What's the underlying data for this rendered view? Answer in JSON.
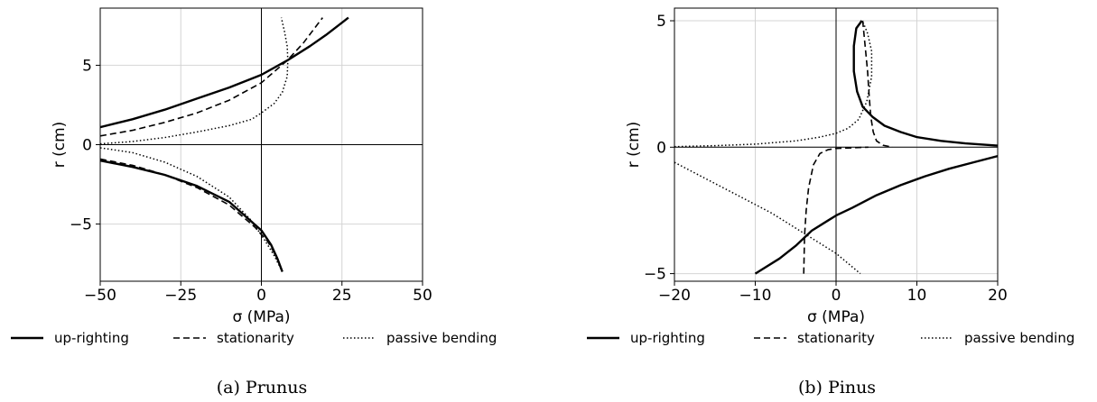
{
  "chart_data": [
    {
      "type": "line",
      "caption": "(a) Prunus",
      "xlabel": "σ (MPa)",
      "ylabel": "r (cm)",
      "xlim": [
        -50,
        50
      ],
      "ylim": [
        -8.6,
        8.6
      ],
      "xticks": [
        -50,
        -25,
        0,
        25,
        50
      ],
      "yticks": [
        -5,
        0,
        5
      ],
      "xtick_labels": [
        "−50",
        "−25",
        "0",
        "25",
        "50"
      ],
      "ytick_labels": [
        "−5",
        "0",
        "5"
      ],
      "grid": true,
      "legend_position": "bottom",
      "series": [
        {
          "name": "up-righting",
          "style": "solid",
          "segments": [
            [
              [
                -50,
                1.1
              ],
              [
                -40,
                1.6
              ],
              [
                -30,
                2.2
              ],
              [
                -20,
                2.9
              ],
              [
                -10,
                3.6
              ],
              [
                0,
                4.4
              ],
              [
                8,
                5.3
              ],
              [
                15,
                6.2
              ],
              [
                20,
                6.9
              ],
              [
                27,
                8.0
              ]
            ],
            [
              [
                -50,
                -1.0
              ],
              [
                -40,
                -1.4
              ],
              [
                -30,
                -1.9
              ],
              [
                -20,
                -2.6
              ],
              [
                -10,
                -3.6
              ],
              [
                0,
                -5.4
              ],
              [
                3,
                -6.3
              ],
              [
                5,
                -7.2
              ],
              [
                6.5,
                -8.0
              ]
            ]
          ]
        },
        {
          "name": "stationarity",
          "style": "dashed",
          "segments": [
            [
              [
                -50,
                0.55
              ],
              [
                -40,
                0.9
              ],
              [
                -30,
                1.4
              ],
              [
                -20,
                2.0
              ],
              [
                -10,
                2.8
              ],
              [
                0,
                3.9
              ],
              [
                8,
                5.3
              ],
              [
                13,
                6.4
              ],
              [
                19,
                8.0
              ]
            ],
            [
              [
                -50,
                -0.9
              ],
              [
                -40,
                -1.3
              ],
              [
                -30,
                -1.9
              ],
              [
                -20,
                -2.7
              ],
              [
                -10,
                -3.8
              ],
              [
                -2,
                -5.2
              ],
              [
                2,
                -6.1
              ],
              [
                4.5,
                -7.0
              ],
              [
                6.5,
                -8.0
              ]
            ]
          ]
        },
        {
          "name": "passive bending",
          "style": "dotted",
          "segments": [
            [
              [
                -50,
                0.05
              ],
              [
                -40,
                0.2
              ],
              [
                -30,
                0.45
              ],
              [
                -20,
                0.8
              ],
              [
                -10,
                1.2
              ],
              [
                -3,
                1.6
              ],
              [
                0,
                2.0
              ],
              [
                4,
                2.6
              ],
              [
                6.5,
                3.3
              ],
              [
                8,
                4.3
              ],
              [
                8.2,
                5.3
              ],
              [
                8,
                6.2
              ],
              [
                7.2,
                7.1
              ],
              [
                6.2,
                8.0
              ]
            ],
            [
              [
                -50,
                -0.2
              ],
              [
                -40,
                -0.5
              ],
              [
                -30,
                -1.1
              ],
              [
                -20,
                -2.0
              ],
              [
                -10,
                -3.3
              ],
              [
                -3,
                -4.8
              ],
              [
                1,
                -6.0
              ],
              [
                4,
                -7.0
              ],
              [
                6.5,
                -8.0
              ]
            ]
          ]
        }
      ]
    },
    {
      "type": "line",
      "caption": "(b) Pinus",
      "xlabel": "σ (MPa)",
      "ylabel": "r (cm)",
      "xlim": [
        -20,
        20
      ],
      "ylim": [
        -5.3,
        5.5
      ],
      "xticks": [
        -20,
        -10,
        0,
        10,
        20
      ],
      "yticks": [
        -5,
        0,
        5
      ],
      "xtick_labels": [
        "−20",
        "−10",
        "0",
        "10",
        "20"
      ],
      "ytick_labels": [
        "−5",
        "0",
        "5"
      ],
      "grid": true,
      "legend_position": "bottom",
      "series": [
        {
          "name": "up-righting",
          "style": "solid",
          "segments": [
            [
              [
                3.2,
                5.0
              ],
              [
                2.5,
                4.7
              ],
              [
                2.2,
                4.0
              ],
              [
                2.2,
                3.0
              ],
              [
                2.6,
                2.2
              ],
              [
                3.3,
                1.6
              ],
              [
                4.5,
                1.2
              ],
              [
                6,
                0.85
              ],
              [
                8,
                0.6
              ],
              [
                10,
                0.4
              ],
              [
                13,
                0.25
              ],
              [
                16,
                0.15
              ],
              [
                20,
                0.06
              ]
            ],
            [
              [
                -10,
                -5.0
              ],
              [
                -7,
                -4.4
              ],
              [
                -5,
                -3.9
              ],
              [
                -3,
                -3.3
              ],
              [
                -1,
                -2.9
              ],
              [
                0,
                -2.7
              ],
              [
                2,
                -2.4
              ],
              [
                5,
                -1.9
              ],
              [
                8,
                -1.5
              ],
              [
                11,
                -1.15
              ],
              [
                14,
                -0.85
              ],
              [
                17,
                -0.6
              ],
              [
                20,
                -0.35
              ]
            ]
          ]
        },
        {
          "name": "stationarity",
          "style": "dashed",
          "segments": [
            [
              [
                3.3,
                5.0
              ],
              [
                3.6,
                4.0
              ],
              [
                3.9,
                3.0
              ],
              [
                4.1,
                2.0
              ],
              [
                4.3,
                1.2
              ],
              [
                4.6,
                0.6
              ],
              [
                5,
                0.25
              ],
              [
                5.8,
                0.08
              ],
              [
                7,
                0.0
              ]
            ],
            [
              [
                -4,
                -5.0
              ],
              [
                -3.9,
                -3.5
              ],
              [
                -3.7,
                -2.5
              ],
              [
                -3.4,
                -1.6
              ],
              [
                -2.8,
                -0.7
              ],
              [
                -2,
                -0.25
              ],
              [
                -1,
                -0.1
              ],
              [
                0,
                -0.05
              ],
              [
                4,
                0.0
              ]
            ]
          ]
        },
        {
          "name": "passive bending",
          "style": "dotted",
          "segments": [
            [
              [
                -20,
                0.02
              ],
              [
                -15,
                0.06
              ],
              [
                -10,
                0.12
              ],
              [
                -5,
                0.25
              ],
              [
                -2,
                0.4
              ],
              [
                0,
                0.55
              ],
              [
                1.5,
                0.75
              ],
              [
                2.8,
                1.1
              ],
              [
                3.8,
                1.8
              ],
              [
                4.4,
                2.8
              ],
              [
                4.4,
                3.8
              ],
              [
                3.9,
                4.5
              ],
              [
                3.4,
                4.9
              ],
              [
                3.0,
                5.0
              ]
            ],
            [
              [
                -20,
                -0.6
              ],
              [
                -17,
                -1.1
              ],
              [
                -14,
                -1.6
              ],
              [
                -11,
                -2.1
              ],
              [
                -8,
                -2.6
              ],
              [
                -5,
                -3.2
              ],
              [
                -2,
                -3.8
              ],
              [
                0,
                -4.2
              ],
              [
                3,
                -5.0
              ]
            ]
          ]
        }
      ]
    }
  ]
}
